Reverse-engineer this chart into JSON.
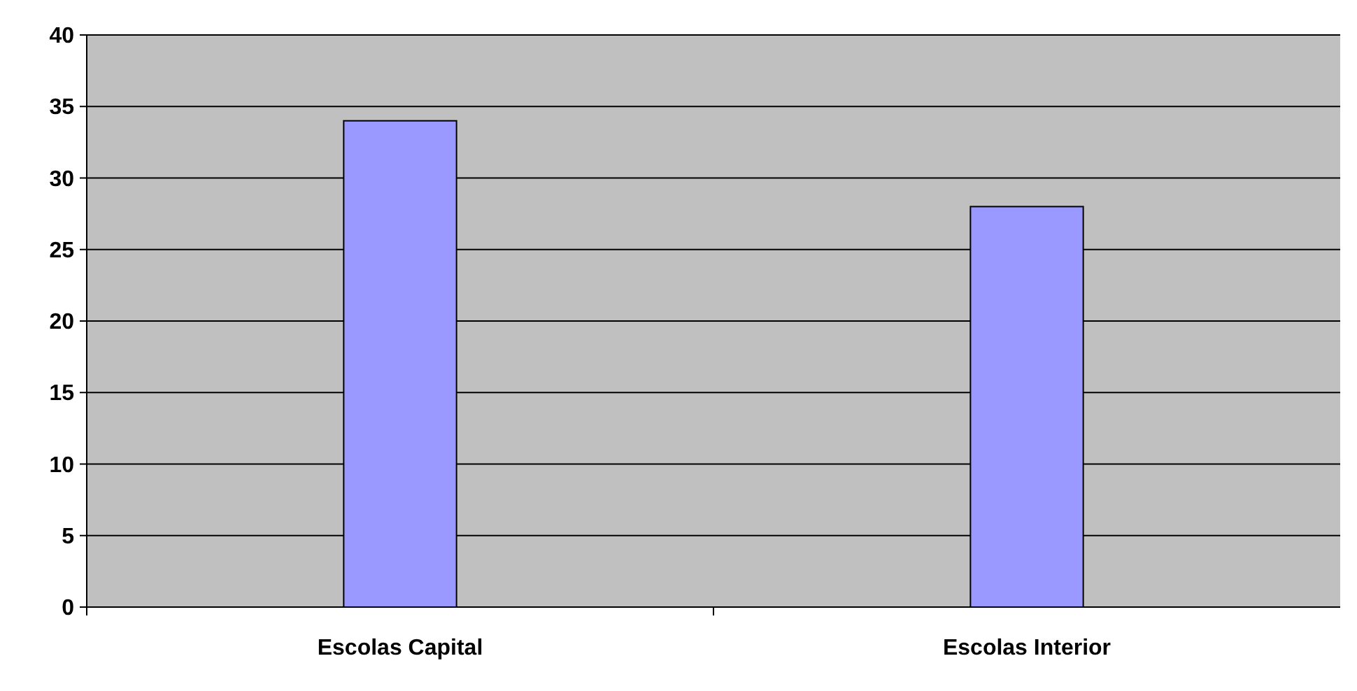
{
  "chart_data": {
    "type": "bar",
    "categories": [
      "Escolas Capital",
      "Escolas Interior"
    ],
    "values": [
      34,
      28
    ],
    "color": "#9999ff",
    "ylim": [
      0,
      40
    ],
    "yticks": [
      0,
      5,
      10,
      15,
      20,
      25,
      30,
      35,
      40
    ],
    "grid": "y"
  }
}
